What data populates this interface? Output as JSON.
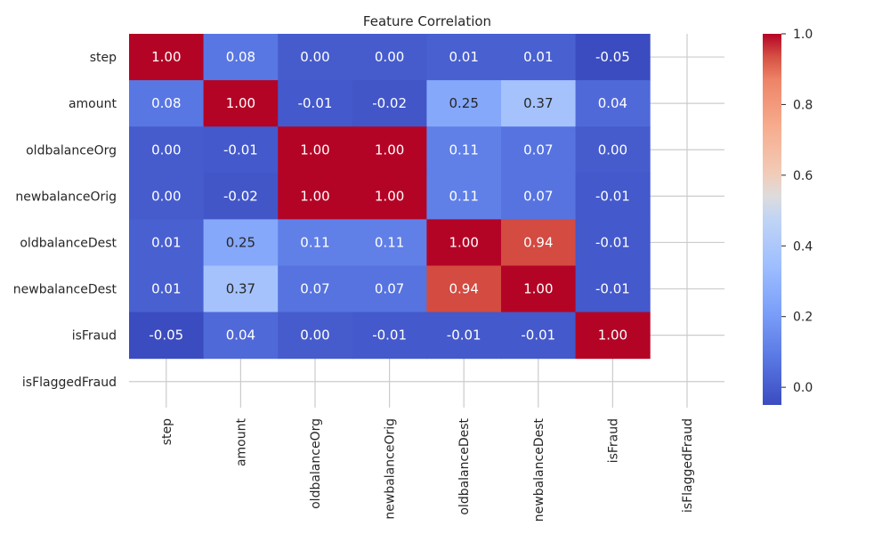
{
  "chart_data": {
    "type": "heatmap",
    "title": "Feature Correlation",
    "xlabel": "",
    "ylabel": "",
    "rows": [
      "step",
      "amount",
      "oldbalanceOrg",
      "newbalanceOrig",
      "oldbalanceDest",
      "newbalanceDest",
      "isFraud",
      "isFlaggedFraud"
    ],
    "columns": [
      "step",
      "amount",
      "oldbalanceOrg",
      "newbalanceOrig",
      "oldbalanceDest",
      "newbalanceDest",
      "isFraud",
      "isFlaggedFraud"
    ],
    "values": [
      [
        1.0,
        0.08,
        -0.0,
        -0.0,
        0.01,
        0.01,
        -0.05,
        null
      ],
      [
        0.08,
        1.0,
        -0.01,
        -0.02,
        0.25,
        0.37,
        0.04,
        null
      ],
      [
        -0.0,
        -0.01,
        1.0,
        1.0,
        0.11,
        0.07,
        -0.0,
        null
      ],
      [
        -0.0,
        -0.02,
        1.0,
        1.0,
        0.11,
        0.07,
        -0.01,
        null
      ],
      [
        0.01,
        0.25,
        0.11,
        0.11,
        1.0,
        0.94,
        -0.01,
        null
      ],
      [
        0.01,
        0.37,
        0.07,
        0.07,
        0.94,
        1.0,
        -0.01,
        null
      ],
      [
        -0.05,
        0.04,
        -0.0,
        -0.01,
        -0.01,
        -0.01,
        1.0,
        null
      ],
      [
        null,
        null,
        null,
        null,
        null,
        null,
        null,
        null
      ]
    ],
    "value_format": "0.00",
    "colormap": "coolwarm",
    "colorbar": {
      "vmin": -0.05,
      "vmax": 1.0,
      "ticks": [
        "0.0",
        "0.2",
        "0.4",
        "0.6",
        "0.8",
        "1.0"
      ],
      "tick_values": [
        0.0,
        0.2,
        0.4,
        0.6,
        0.8,
        1.0
      ]
    },
    "grid": true
  }
}
